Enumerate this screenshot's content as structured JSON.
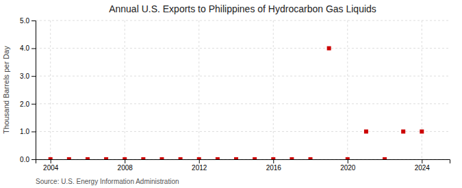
{
  "chart_data": {
    "type": "scatter",
    "title": "Annual U.S. Exports to Philippines of Hydrocarbon Gas Liquids",
    "ylabel": "Thousand Barrels per Day",
    "source": "Source: U.S. Energy Information Administration",
    "x": [
      2004,
      2005,
      2006,
      2007,
      2008,
      2009,
      2010,
      2011,
      2012,
      2013,
      2014,
      2015,
      2016,
      2017,
      2018,
      2019,
      2020,
      2021,
      2022,
      2023,
      2024
    ],
    "values": [
      0.0,
      0.0,
      0.0,
      0.0,
      0.0,
      0.0,
      0.0,
      0.0,
      0.0,
      0.0,
      0.0,
      0.0,
      0.0,
      0.0,
      0.0,
      4.0,
      0.0,
      1.0,
      0.0,
      1.0,
      1.0
    ],
    "color": "#cc0000",
    "marker": "square",
    "xlim": [
      2003.2,
      2025.5
    ],
    "ylim": [
      0.0,
      5.0
    ],
    "xticks": [
      2004,
      2008,
      2012,
      2016,
      2020,
      2024
    ],
    "yticks": [
      {
        "value": 0.0,
        "label": "0.0"
      },
      {
        "value": 1.0,
        "label": "1.0"
      },
      {
        "value": 2.0,
        "label": "2.0"
      },
      {
        "value": 3.0,
        "label": "3.0"
      },
      {
        "value": 4.0,
        "label": "4.0"
      },
      {
        "value": 5.0,
        "label": "5.0"
      }
    ],
    "grid": true
  }
}
